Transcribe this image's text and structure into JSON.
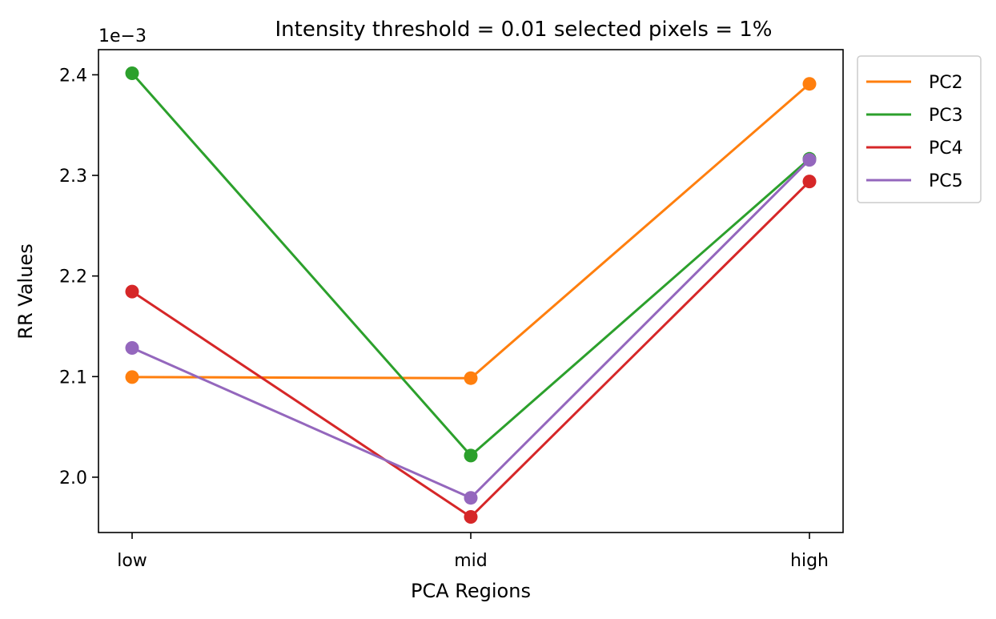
{
  "chart_data": {
    "type": "line",
    "title": "Intensity threshold = 0.01 selected pixels = 1%",
    "xlabel": "PCA Regions",
    "ylabel": "RR Values",
    "y_offset_label": "1e−3",
    "categories": [
      "low",
      "mid",
      "high"
    ],
    "ylim": [
      0.001945,
      0.002425
    ],
    "yticks": [
      0.002,
      0.0021,
      0.0022,
      0.0023,
      0.0024
    ],
    "ytick_labels": [
      "2.0",
      "2.1",
      "2.2",
      "2.3",
      "2.4"
    ],
    "grid": false,
    "legend_position": "outside-top-right",
    "series": [
      {
        "name": "PC2",
        "color": "#ff7f0e",
        "values": [
          0.0020995,
          0.0020985,
          0.002391
        ]
      },
      {
        "name": "PC3",
        "color": "#2ca02c",
        "values": [
          0.0024015,
          0.0020215,
          0.0023165
        ]
      },
      {
        "name": "PC4",
        "color": "#d62728",
        "values": [
          0.0021845,
          0.0019605,
          0.002294
        ]
      },
      {
        "name": "PC5",
        "color": "#9467bd",
        "values": [
          0.0021285,
          0.0019795,
          0.0023155
        ]
      }
    ]
  }
}
